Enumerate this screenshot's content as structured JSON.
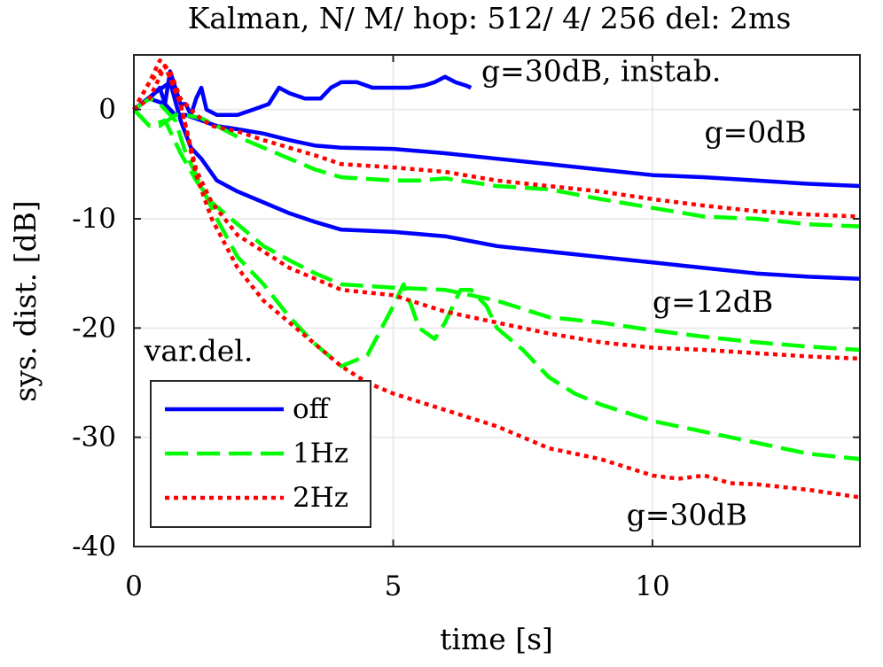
{
  "chart_data": {
    "type": "line",
    "title": "Kalman, N/ M/ hop: 512/ 4/ 256 del: 2ms",
    "xlabel": "time [s]",
    "ylabel": "sys. dist. [dB]",
    "xlim": [
      0,
      14
    ],
    "ylim": [
      -40,
      5
    ],
    "xticks": [
      0,
      5,
      10
    ],
    "yticks": [
      0,
      -10,
      -20,
      -30,
      -40
    ],
    "xtick_labels": [
      "0",
      "5",
      "10"
    ],
    "ytick_labels": [
      "0",
      "-10",
      "-20",
      "-30",
      "-40"
    ],
    "grid": true,
    "legend": {
      "position": "bottom-left",
      "entries": [
        {
          "label": "off",
          "color": "#0000ff",
          "style": "solid"
        },
        {
          "label": "1Hz",
          "color": "#00ff00",
          "style": "dashed"
        },
        {
          "label": "2Hz",
          "color": "#ff0000",
          "style": "dotted"
        }
      ]
    },
    "annotations": [
      {
        "text": "g=30dB, instab.",
        "x": 6.7,
        "y": 2.6
      },
      {
        "text": "g=0dB",
        "x": 11.0,
        "y": -3.0
      },
      {
        "text": "g=12dB",
        "x": 10.0,
        "y": -18.5
      },
      {
        "text": "g=30dB",
        "x": 9.5,
        "y": -38.0
      },
      {
        "text": "var.del.",
        "x": 0.2,
        "y": -23.0
      }
    ],
    "series": [
      {
        "name": "off, g=30dB, instab.",
        "legend": "off",
        "color": "#0000ff",
        "style": "solid",
        "x": [
          0,
          0.3,
          0.5,
          0.6,
          0.7,
          0.8,
          0.9,
          1.0,
          1.1,
          1.2,
          1.3,
          1.4,
          1.6,
          1.8,
          2.0,
          2.3,
          2.6,
          2.8,
          3.0,
          3.3,
          3.6,
          3.8,
          4.0,
          4.3,
          4.6,
          5.0,
          5.3,
          5.6,
          5.8,
          6.0,
          6.2,
          6.4,
          6.5
        ],
        "y": [
          0,
          1.0,
          2.0,
          0.5,
          3.5,
          2.0,
          0.5,
          0.5,
          -0.5,
          1.0,
          2.0,
          0,
          -0.5,
          -0.5,
          -0.5,
          0,
          0.5,
          2.0,
          1.5,
          1.0,
          1.0,
          2.0,
          2.5,
          2.5,
          2.0,
          2.0,
          2.0,
          2.2,
          2.5,
          3.0,
          2.5,
          2.2,
          2.0
        ]
      },
      {
        "name": "off, g=0dB",
        "legend": "off",
        "color": "#0000ff",
        "style": "solid",
        "x": [
          0,
          0.3,
          0.6,
          0.8,
          1.0,
          1.3,
          1.6,
          2.0,
          2.5,
          3.0,
          3.5,
          4.0,
          5.0,
          6.0,
          7.0,
          8.0,
          9.0,
          10.0,
          11.0,
          12.0,
          13.0,
          14.0
        ],
        "y": [
          0,
          1.0,
          0.5,
          -0.5,
          -0.5,
          -1.0,
          -1.5,
          -1.8,
          -2.2,
          -2.8,
          -3.3,
          -3.5,
          -3.6,
          -4.0,
          -4.5,
          -5.0,
          -5.5,
          -6.0,
          -6.2,
          -6.5,
          -6.8,
          -7.0
        ]
      },
      {
        "name": "off, g=12dB",
        "legend": "off",
        "color": "#0000ff",
        "style": "solid",
        "x": [
          0,
          0.4,
          0.7,
          0.9,
          1.1,
          1.3,
          1.6,
          2.0,
          2.5,
          3.0,
          3.5,
          4.0,
          5.0,
          6.0,
          7.0,
          8.0,
          9.0,
          10.0,
          11.0,
          12.0,
          13.0,
          14.0
        ],
        "y": [
          0,
          1.5,
          2.5,
          -1.0,
          -3.5,
          -4.5,
          -6.5,
          -7.5,
          -8.5,
          -9.5,
          -10.3,
          -11.0,
          -11.2,
          -11.6,
          -12.5,
          -13.0,
          -13.5,
          -14.0,
          -14.5,
          -15.0,
          -15.3,
          -15.5
        ]
      },
      {
        "name": "1Hz, g=0dB",
        "legend": "1Hz",
        "color": "#00ff00",
        "style": "dashed",
        "x": [
          0,
          0.3,
          0.5,
          0.8,
          1.0,
          1.3,
          1.6,
          2.0,
          2.5,
          3.0,
          3.5,
          4.0,
          5.0,
          5.5,
          6.0,
          7.0,
          8.0,
          9.0,
          10.0,
          11.0,
          12.0,
          13.0,
          14.0
        ],
        "y": [
          0,
          -1.5,
          -1.5,
          -0.5,
          -0.5,
          -0.8,
          -1.5,
          -2.5,
          -3.5,
          -4.5,
          -5.5,
          -6.2,
          -6.5,
          -6.5,
          -6.3,
          -7.0,
          -7.3,
          -8.2,
          -9.0,
          -9.8,
          -10.0,
          -10.5,
          -10.7
        ]
      },
      {
        "name": "1Hz, g=12dB",
        "legend": "1Hz",
        "color": "#00ff00",
        "style": "dashed",
        "x": [
          0,
          0.3,
          0.6,
          0.9,
          1.2,
          1.5,
          2.0,
          2.5,
          3.0,
          3.5,
          4.0,
          5.0,
          6.0,
          7.0,
          8.0,
          9.0,
          10.0,
          11.0,
          12.0,
          13.0,
          14.0
        ],
        "y": [
          0,
          -1.5,
          -1.0,
          -4.0,
          -6.5,
          -8.5,
          -10.5,
          -12.5,
          -13.8,
          -15.0,
          -16.0,
          -16.3,
          -16.5,
          -17.5,
          -19.0,
          -19.5,
          -20.2,
          -20.8,
          -21.3,
          -21.7,
          -22.0
        ]
      },
      {
        "name": "1Hz, g=30dB",
        "legend": "1Hz",
        "color": "#00ff00",
        "style": "dashed",
        "x": [
          0,
          0.3,
          0.5,
          0.8,
          1.0,
          1.3,
          1.6,
          2.0,
          2.5,
          3.0,
          3.5,
          4.0,
          4.5,
          5.0,
          5.2,
          5.5,
          5.8,
          6.0,
          6.3,
          6.5,
          6.8,
          7.0,
          7.5,
          8.0,
          8.5,
          9.0,
          10.0,
          11.0,
          12.0,
          13.0,
          14.0
        ],
        "y": [
          0,
          1.0,
          0.5,
          -1.0,
          -4.0,
          -7.0,
          -10.0,
          -13.5,
          -16.0,
          -19.0,
          -21.5,
          -23.5,
          -22.5,
          -18.0,
          -16.0,
          -20.0,
          -21.0,
          -19.5,
          -16.5,
          -16.5,
          -18.0,
          -20.0,
          -22.0,
          -24.5,
          -26.0,
          -27.0,
          -28.5,
          -29.5,
          -30.5,
          -31.5,
          -32.0
        ]
      },
      {
        "name": "2Hz, g=0dB",
        "legend": "2Hz",
        "color": "#ff0000",
        "style": "dotted",
        "x": [
          0,
          0.3,
          0.5,
          0.7,
          0.9,
          1.2,
          1.5,
          2.0,
          2.5,
          3.0,
          3.5,
          4.0,
          5.0,
          6.0,
          7.0,
          8.0,
          9.0,
          10.0,
          11.0,
          12.0,
          13.0,
          14.0
        ],
        "y": [
          0,
          2.5,
          4.5,
          3.5,
          1.0,
          -0.5,
          -1.5,
          -2.0,
          -2.8,
          -3.5,
          -4.2,
          -5.0,
          -5.3,
          -5.7,
          -6.5,
          -7.0,
          -7.5,
          -8.2,
          -8.8,
          -9.3,
          -9.6,
          -9.8
        ]
      },
      {
        "name": "2Hz, g=12dB",
        "legend": "2Hz",
        "color": "#ff0000",
        "style": "dotted",
        "x": [
          0,
          0.3,
          0.6,
          0.9,
          1.2,
          1.5,
          2.0,
          2.5,
          3.0,
          3.5,
          4.0,
          5.0,
          6.0,
          7.0,
          8.0,
          9.0,
          10.0,
          11.0,
          12.0,
          13.0,
          14.0
        ],
        "y": [
          0,
          1.0,
          4.0,
          0.5,
          -5.5,
          -8.5,
          -11.5,
          -13.0,
          -14.5,
          -15.5,
          -16.5,
          -17.0,
          -18.5,
          -19.5,
          -20.5,
          -21.3,
          -21.8,
          -22.0,
          -22.3,
          -22.6,
          -22.8
        ]
      },
      {
        "name": "2Hz, g=30dB",
        "legend": "2Hz",
        "color": "#ff0000",
        "style": "dotted",
        "x": [
          0,
          0.3,
          0.6,
          0.9,
          1.2,
          1.5,
          2.0,
          2.5,
          3.0,
          3.5,
          4.0,
          4.5,
          5.0,
          6.0,
          7.0,
          8.0,
          9.0,
          10.0,
          10.5,
          11.0,
          11.5,
          12.0,
          13.0,
          14.0
        ],
        "y": [
          0,
          2.5,
          4.0,
          0.5,
          -6.0,
          -10.0,
          -14.5,
          -17.5,
          -19.5,
          -21.5,
          -23.5,
          -25.0,
          -26.0,
          -27.5,
          -29.0,
          -31.0,
          -32.0,
          -33.5,
          -33.8,
          -33.5,
          -34.2,
          -34.3,
          -34.8,
          -35.5
        ]
      }
    ]
  }
}
